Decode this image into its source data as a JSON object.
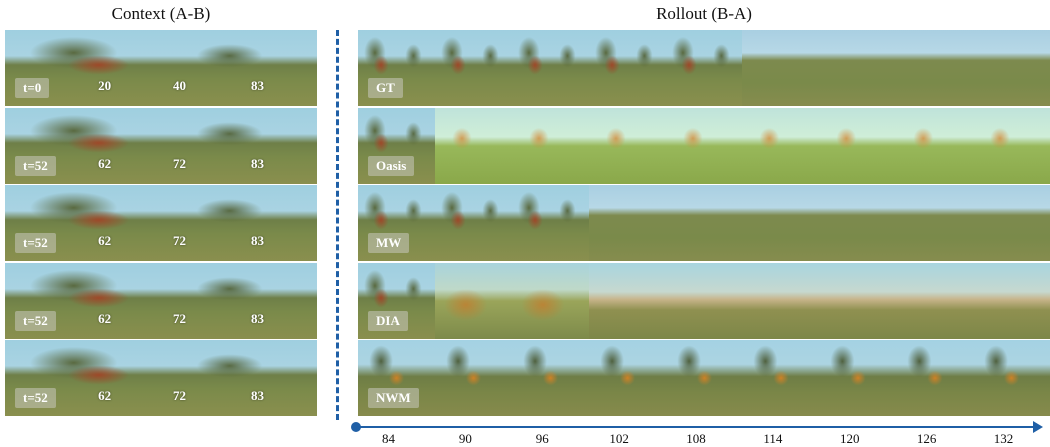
{
  "context": {
    "title": "Context (A-B)",
    "rows": [
      {
        "badge": "t=0",
        "steps": [
          "20",
          "40",
          "83"
        ]
      },
      {
        "badge": "t=52",
        "steps": [
          "62",
          "72",
          "83"
        ]
      },
      {
        "badge": "t=52",
        "steps": [
          "62",
          "72",
          "83"
        ]
      },
      {
        "badge": "t=52",
        "steps": [
          "62",
          "72",
          "83"
        ]
      },
      {
        "badge": "t=52",
        "steps": [
          "62",
          "72",
          "83"
        ]
      }
    ]
  },
  "rollout": {
    "title": "Rollout (B-A)",
    "rows": [
      {
        "label": "GT"
      },
      {
        "label": "Oasis"
      },
      {
        "label": "MW"
      },
      {
        "label": "DIA"
      },
      {
        "label": "NWM"
      }
    ]
  },
  "axis": {
    "ticks": [
      "84",
      "90",
      "96",
      "102",
      "108",
      "114",
      "120",
      "126",
      "132"
    ],
    "color": "#1f5fa6"
  }
}
